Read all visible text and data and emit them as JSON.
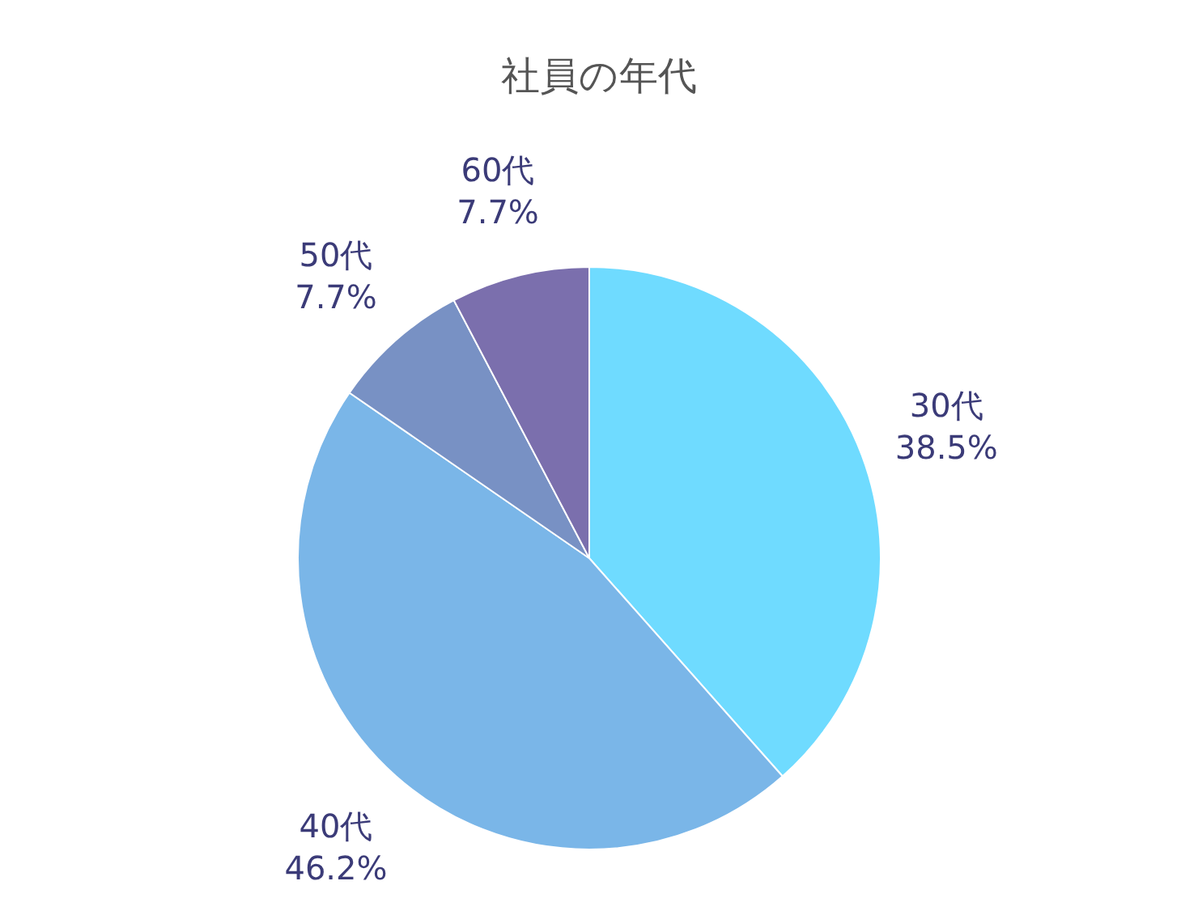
{
  "chart_data": {
    "type": "pie",
    "title": "社員の年代",
    "categories": [
      "30代",
      "40代",
      "50代",
      "60代"
    ],
    "values": [
      38.5,
      46.2,
      7.7,
      7.7
    ],
    "colors": [
      "#6fdbff",
      "#7ab6e8",
      "#7891c4",
      "#7b6fad"
    ],
    "value_labels": [
      "38.5%",
      "46.2%",
      "7.7%",
      "7.7%"
    ],
    "legend": false
  }
}
